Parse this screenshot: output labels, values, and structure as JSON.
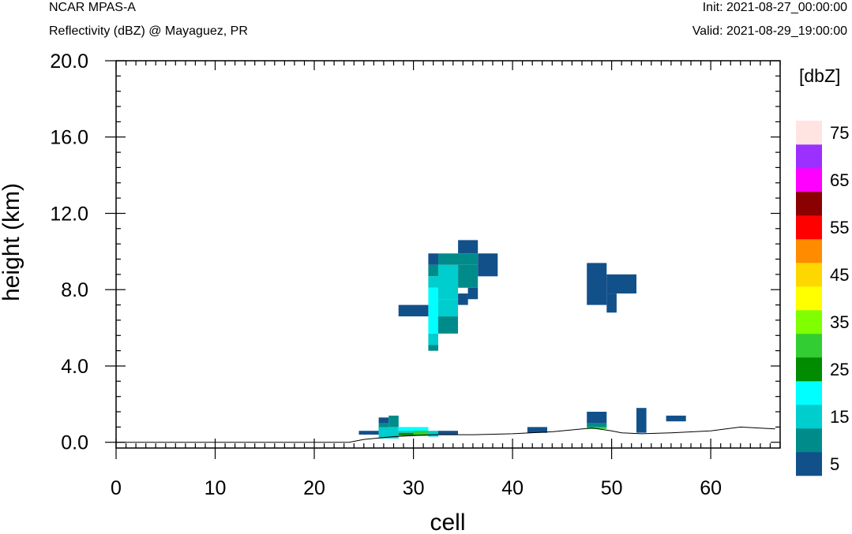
{
  "header": {
    "left_line1": "NCAR MPAS-A",
    "left_line2": "Reflectivity (dBZ) @ Mayaguez, PR",
    "right_line1": "Init: 2021-08-27_00:00:00",
    "right_line2": "Valid: 2021-08-29_19:00:00"
  },
  "chart_data": {
    "type": "heatmap",
    "title": "Reflectivity (dBZ) @ Mayaguez, PR",
    "xlabel": "cell",
    "ylabel": "height (km)",
    "xlim": [
      0,
      67
    ],
    "ylim": [
      -0.3,
      20.0
    ],
    "x_ticks": [
      0,
      10,
      20,
      30,
      40,
      50,
      60
    ],
    "x_tick_labels": [
      "0",
      "10",
      "20",
      "30",
      "40",
      "50",
      "60"
    ],
    "y_ticks": [
      0.0,
      4.0,
      8.0,
      12.0,
      16.0,
      20.0
    ],
    "y_tick_labels": [
      "0.0",
      "4.0",
      "8.0",
      "12.0",
      "16.0",
      "20.0"
    ],
    "colorbar": {
      "unit_label": "[dbZ]",
      "labels": [
        "5",
        "15",
        "25",
        "35",
        "45",
        "55",
        "65",
        "75"
      ],
      "levels": [
        5,
        10,
        15,
        20,
        25,
        30,
        35,
        40,
        45,
        50,
        55,
        60,
        65,
        70,
        75
      ],
      "colors": [
        "#12508a",
        "#008b8b",
        "#00cdcd",
        "#00ffff",
        "#008b00",
        "#32cd32",
        "#7fff00",
        "#ffff00",
        "#ffd700",
        "#ff8c00",
        "#ff0000",
        "#8b0000",
        "#ff00ff",
        "#9b30ff",
        "#ffe4e1"
      ]
    },
    "terrain": [
      [
        0,
        0
      ],
      [
        23.5,
        0
      ],
      [
        25,
        0.15
      ],
      [
        28,
        0.3
      ],
      [
        32,
        0.4
      ],
      [
        36,
        0.4
      ],
      [
        40,
        0.45
      ],
      [
        44,
        0.55
      ],
      [
        48,
        0.75
      ],
      [
        50,
        0.6
      ],
      [
        51,
        0.5
      ],
      [
        53,
        0.45
      ],
      [
        56,
        0.5
      ],
      [
        60,
        0.6
      ],
      [
        63,
        0.8
      ],
      [
        66.5,
        0.7
      ]
    ],
    "cells": [
      {
        "x": [
          34.5,
          36.5
        ],
        "y": [
          9.9,
          10.6
        ],
        "dbz": 5
      },
      {
        "x": [
          31.5,
          32.5
        ],
        "y": [
          9.3,
          9.9
        ],
        "dbz": 5
      },
      {
        "x": [
          32.5,
          36.5
        ],
        "y": [
          9.3,
          9.9
        ],
        "dbz": 10
      },
      {
        "x": [
          36.5,
          38.5
        ],
        "y": [
          8.7,
          9.9
        ],
        "dbz": 5
      },
      {
        "x": [
          31.5,
          32.5
        ],
        "y": [
          8.7,
          9.3
        ],
        "dbz": 10
      },
      {
        "x": [
          32.5,
          34.5
        ],
        "y": [
          7.5,
          9.3
        ],
        "dbz": 15
      },
      {
        "x": [
          34.5,
          36.5
        ],
        "y": [
          8.1,
          9.3
        ],
        "dbz": 10
      },
      {
        "x": [
          31.5,
          32.5
        ],
        "y": [
          8.1,
          8.7
        ],
        "dbz": 15
      },
      {
        "x": [
          31.5,
          32.5
        ],
        "y": [
          5.7,
          8.1
        ],
        "dbz": 20
      },
      {
        "x": [
          35.5,
          36.5
        ],
        "y": [
          7.5,
          8.1
        ],
        "dbz": 5
      },
      {
        "x": [
          34.5,
          35.5
        ],
        "y": [
          7.2,
          7.8
        ],
        "dbz": 5
      },
      {
        "x": [
          32.5,
          34.5
        ],
        "y": [
          6.6,
          7.5
        ],
        "dbz": 15
      },
      {
        "x": [
          28.5,
          31.5
        ],
        "y": [
          6.6,
          7.2
        ],
        "dbz": 5
      },
      {
        "x": [
          32.5,
          34.5
        ],
        "y": [
          5.7,
          6.6
        ],
        "dbz": 10
      },
      {
        "x": [
          31.5,
          32.5
        ],
        "y": [
          5.1,
          5.7
        ],
        "dbz": 15
      },
      {
        "x": [
          31.5,
          32.5
        ],
        "y": [
          4.8,
          5.1
        ],
        "dbz": 10
      },
      {
        "x": [
          47.5,
          49.5
        ],
        "y": [
          7.2,
          9.4
        ],
        "dbz": 5
      },
      {
        "x": [
          49.5,
          52.5
        ],
        "y": [
          7.8,
          8.8
        ],
        "dbz": 5
      },
      {
        "x": [
          49.5,
          50.5
        ],
        "y": [
          6.8,
          7.8
        ],
        "dbz": 5
      },
      {
        "x": [
          24.5,
          26.5
        ],
        "y": [
          0.4,
          0.6
        ],
        "dbz": 5
      },
      {
        "x": [
          26.5,
          27.5
        ],
        "y": [
          1.0,
          1.3
        ],
        "dbz": 5
      },
      {
        "x": [
          26.5,
          27.5
        ],
        "y": [
          0.6,
          1.0
        ],
        "dbz": 10
      },
      {
        "x": [
          27.5,
          28.5
        ],
        "y": [
          0.8,
          1.4
        ],
        "dbz": 10
      },
      {
        "x": [
          26.5,
          28.5
        ],
        "y": [
          0.2,
          0.8
        ],
        "dbz": 15
      },
      {
        "x": [
          28.5,
          31.5
        ],
        "y": [
          0.6,
          0.8
        ],
        "dbz": 20
      },
      {
        "x": [
          28.5,
          31.5
        ],
        "y": [
          0.5,
          0.6
        ],
        "dbz": 15
      },
      {
        "x": [
          28.5,
          31.5
        ],
        "y": [
          0.35,
          0.5
        ],
        "dbz": 25
      },
      {
        "x": [
          30.0,
          31.5
        ],
        "y": [
          0.4,
          0.6
        ],
        "dbz": 30
      },
      {
        "x": [
          31.5,
          32.5
        ],
        "y": [
          0.3,
          0.6
        ],
        "dbz": 15
      },
      {
        "x": [
          32.5,
          34.5
        ],
        "y": [
          0.4,
          0.6
        ],
        "dbz": 5
      },
      {
        "x": [
          41.5,
          43.5
        ],
        "y": [
          0.5,
          0.8
        ],
        "dbz": 5
      },
      {
        "x": [
          47.5,
          49.5
        ],
        "y": [
          1.0,
          1.6
        ],
        "dbz": 5
      },
      {
        "x": [
          47.5,
          49.5
        ],
        "y": [
          0.8,
          1.0
        ],
        "dbz": 10
      },
      {
        "x": [
          47.5,
          49.5
        ],
        "y": [
          0.7,
          0.8
        ],
        "dbz": 30
      },
      {
        "x": [
          52.5,
          53.5
        ],
        "y": [
          0.5,
          1.8
        ],
        "dbz": 5
      },
      {
        "x": [
          55.5,
          57.5
        ],
        "y": [
          1.1,
          1.4
        ],
        "dbz": 5
      }
    ]
  }
}
